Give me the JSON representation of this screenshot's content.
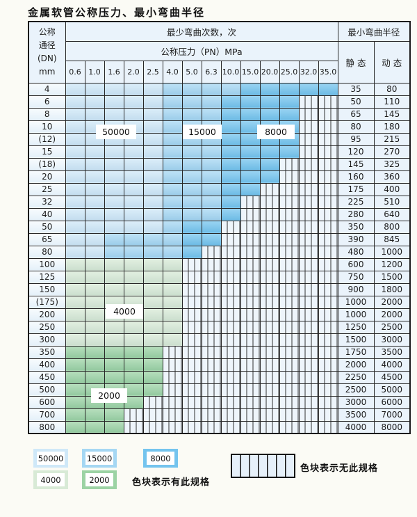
{
  "title": "金属软管公称压力、最小弯曲半径",
  "table": {
    "header": {
      "dn_lines": [
        "公称",
        "通径",
        "(DN)",
        "mm"
      ],
      "cycles_label": "最少弯曲次数，次",
      "pressure_label": "公称压力（PN）MPa",
      "radius_label": "最小弯曲半径",
      "static_label": "静 态",
      "dynamic_label": "动 态"
    },
    "pressure_columns": [
      "0.6",
      "1.0",
      "1.6",
      "2.0",
      "2.5",
      "4.0",
      "5.0",
      "6.3",
      "10.0",
      "15.0",
      "20.0",
      "25.0",
      "32.0",
      "35.0"
    ],
    "rows": [
      {
        "dn": "4",
        "bands": [
          [
            "b50000",
            5
          ],
          [
            "b15000",
            4
          ],
          [
            "b8000",
            5
          ]
        ],
        "static": "35",
        "dynamic": "80"
      },
      {
        "dn": "6",
        "bands": [
          [
            "b50000",
            5
          ],
          [
            "b15000",
            3
          ],
          [
            "b8000",
            4
          ]
        ],
        "static": "50",
        "dynamic": "110"
      },
      {
        "dn": "8",
        "bands": [
          [
            "b50000",
            5
          ],
          [
            "b15000",
            3
          ],
          [
            "b8000",
            4
          ]
        ],
        "static": "65",
        "dynamic": "145"
      },
      {
        "dn": "10",
        "bands": [
          [
            "b50000",
            5
          ],
          [
            "b15000",
            3
          ],
          [
            "b8000",
            4
          ]
        ],
        "static": "80",
        "dynamic": "180"
      },
      {
        "dn": "(12)",
        "bands": [
          [
            "b50000",
            5
          ],
          [
            "b15000",
            3
          ],
          [
            "b8000",
            4
          ]
        ],
        "static": "95",
        "dynamic": "215"
      },
      {
        "dn": "15",
        "bands": [
          [
            "b50000",
            5
          ],
          [
            "b15000",
            3
          ],
          [
            "b8000",
            4
          ]
        ],
        "static": "120",
        "dynamic": "270"
      },
      {
        "dn": "(18)",
        "bands": [
          [
            "b50000",
            5
          ],
          [
            "b15000",
            3
          ],
          [
            "b8000",
            3
          ]
        ],
        "static": "145",
        "dynamic": "325"
      },
      {
        "dn": "20",
        "bands": [
          [
            "b50000",
            5
          ],
          [
            "b15000",
            3
          ],
          [
            "b8000",
            3
          ]
        ],
        "static": "160",
        "dynamic": "360"
      },
      {
        "dn": "25",
        "bands": [
          [
            "b50000",
            5
          ],
          [
            "b15000",
            3
          ],
          [
            "b8000",
            2
          ]
        ],
        "static": "175",
        "dynamic": "400"
      },
      {
        "dn": "32",
        "bands": [
          [
            "b50000",
            5
          ],
          [
            "b15000",
            3
          ],
          [
            "b8000",
            1
          ]
        ],
        "static": "225",
        "dynamic": "510"
      },
      {
        "dn": "40",
        "bands": [
          [
            "b50000",
            5
          ],
          [
            "b15000",
            3
          ],
          [
            "b8000",
            1
          ]
        ],
        "static": "280",
        "dynamic": "640"
      },
      {
        "dn": "50",
        "bands": [
          [
            "b50000",
            5
          ],
          [
            "b15000",
            1
          ],
          [
            "b8000",
            2
          ]
        ],
        "static": "350",
        "dynamic": "800"
      },
      {
        "dn": "65",
        "bands": [
          [
            "b50000",
            2
          ],
          [
            "b15000",
            4
          ],
          [
            "b8000",
            2
          ]
        ],
        "static": "390",
        "dynamic": "845"
      },
      {
        "dn": "80",
        "bands": [
          [
            "b50000",
            2
          ],
          [
            "b15000",
            4
          ],
          [
            "b8000",
            1
          ]
        ],
        "static": "480",
        "dynamic": "1000"
      },
      {
        "dn": "100",
        "bands": [
          [
            "b4000",
            6
          ]
        ],
        "static": "600",
        "dynamic": "1200"
      },
      {
        "dn": "125",
        "bands": [
          [
            "b4000",
            6
          ]
        ],
        "static": "750",
        "dynamic": "1500"
      },
      {
        "dn": "150",
        "bands": [
          [
            "b4000",
            6
          ]
        ],
        "static": "900",
        "dynamic": "1800"
      },
      {
        "dn": "(175)",
        "bands": [
          [
            "b4000",
            6
          ]
        ],
        "static": "1000",
        "dynamic": "2000"
      },
      {
        "dn": "200",
        "bands": [
          [
            "b4000",
            6
          ]
        ],
        "static": "1000",
        "dynamic": "2000"
      },
      {
        "dn": "250",
        "bands": [
          [
            "b4000",
            6
          ]
        ],
        "static": "1250",
        "dynamic": "2500"
      },
      {
        "dn": "300",
        "bands": [
          [
            "b4000",
            6
          ]
        ],
        "static": "1500",
        "dynamic": "3000"
      },
      {
        "dn": "350",
        "bands": [
          [
            "b2000",
            5
          ]
        ],
        "static": "1750",
        "dynamic": "3500"
      },
      {
        "dn": "400",
        "bands": [
          [
            "b2000",
            5
          ]
        ],
        "static": "2000",
        "dynamic": "4000"
      },
      {
        "dn": "450",
        "bands": [
          [
            "b2000",
            5
          ]
        ],
        "static": "2250",
        "dynamic": "4500"
      },
      {
        "dn": "500",
        "bands": [
          [
            "b2000",
            5
          ]
        ],
        "static": "2500",
        "dynamic": "5000"
      },
      {
        "dn": "600",
        "bands": [
          [
            "b2000",
            4
          ]
        ],
        "static": "3000",
        "dynamic": "6000"
      },
      {
        "dn": "700",
        "bands": [
          [
            "b2000",
            3
          ]
        ],
        "static": "3500",
        "dynamic": "7000"
      },
      {
        "dn": "800",
        "bands": [
          [
            "b2000",
            3
          ]
        ],
        "static": "4000",
        "dynamic": "8000"
      }
    ]
  },
  "overlays": {
    "l50000": "50000",
    "l15000": "15000",
    "l8000": "8000",
    "l4000": "4000",
    "l2000": "2000"
  },
  "legend": {
    "items": [
      {
        "label": "50000",
        "key": "b50000"
      },
      {
        "label": "15000",
        "key": "b15000"
      },
      {
        "label": "8000",
        "key": "b8000"
      },
      {
        "label": "4000",
        "key": "b4000"
      },
      {
        "label": "2000",
        "key": "b2000"
      }
    ],
    "has_spec_text": "色块表示有此规格",
    "no_spec_text": "色块表示无此规格"
  },
  "colors": {
    "cycles_50000": "#cfe8f8",
    "cycles_15000": "#a5d7f3",
    "cycles_8000": "#74c4ee",
    "cycles_4000": "#d8ead6",
    "cycles_2000": "#9cd3a4",
    "no_spec_bg": "#eef5fb",
    "border": "#262626"
  }
}
